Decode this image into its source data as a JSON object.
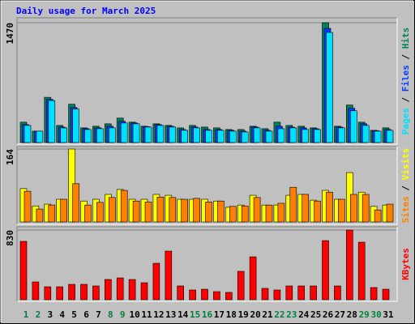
{
  "chart_data": [
    {
      "type": "bar",
      "title": "Daily usage for March 2025",
      "ylim": [
        0,
        1470
      ],
      "yticks": [
        1470
      ],
      "legend_separator": " / ",
      "series": [
        {
          "name": "Hits",
          "color": "#00805c",
          "values": [
            250,
            140,
            555,
            210,
            470,
            180,
            200,
            230,
            300,
            250,
            200,
            230,
            210,
            180,
            210,
            190,
            180,
            160,
            160,
            200,
            170,
            250,
            210,
            200,
            180,
            1470,
            200,
            460,
            250,
            150,
            180
          ]
        },
        {
          "name": "Files",
          "color": "#0040ff",
          "values": [
            220,
            140,
            530,
            190,
            430,
            170,
            180,
            200,
            260,
            240,
            195,
            220,
            200,
            160,
            190,
            160,
            160,
            150,
            140,
            190,
            150,
            200,
            190,
            180,
            170,
            1400,
            190,
            420,
            230,
            145,
            160
          ]
        },
        {
          "name": "Pages",
          "color": "#00e0ff",
          "values": [
            210,
            140,
            515,
            180,
            410,
            160,
            170,
            180,
            240,
            230,
            190,
            210,
            190,
            150,
            180,
            150,
            150,
            140,
            130,
            180,
            140,
            170,
            180,
            160,
            160,
            1350,
            180,
            390,
            210,
            140,
            150
          ]
        }
      ]
    },
    {
      "type": "bar",
      "ylim": [
        0,
        164
      ],
      "yticks": [
        164
      ],
      "legend_separator": " / ",
      "series": [
        {
          "name": "Visits",
          "color": "#ffff00",
          "values": [
            75,
            36,
            40,
            51,
            164,
            47,
            51,
            62,
            73,
            51,
            51,
            62,
            60,
            51,
            51,
            51,
            47,
            33,
            38,
            60,
            38,
            38,
            60,
            62,
            49,
            71,
            51,
            111,
            67,
            35,
            38
          ]
        },
        {
          "name": "Sites",
          "color": "#ff8000",
          "values": [
            69,
            29,
            38,
            51,
            86,
            38,
            44,
            55,
            71,
            47,
            45,
            56,
            55,
            51,
            53,
            45,
            47,
            35,
            36,
            55,
            38,
            42,
            78,
            62,
            47,
            67,
            51,
            62,
            62,
            27,
            40
          ]
        }
      ]
    },
    {
      "type": "bar",
      "ylim": [
        0,
        830
      ],
      "yticks": [
        830
      ],
      "legend_separator": " / ",
      "categories": [
        "1",
        "2",
        "3",
        "4",
        "5",
        "6",
        "7",
        "8",
        "9",
        "10",
        "11",
        "12",
        "13",
        "14",
        "15",
        "16",
        "17",
        "18",
        "19",
        "20",
        "21",
        "22",
        "23",
        "24",
        "25",
        "26",
        "27",
        "28",
        "29",
        "30",
        "31"
      ],
      "category_colors": [
        "#008040",
        "#008040",
        "#000000",
        "#000000",
        "#000000",
        "#000000",
        "#000000",
        "#008040",
        "#008040",
        "#000000",
        "#000000",
        "#000000",
        "#000000",
        "#000000",
        "#008040",
        "#008040",
        "#000000",
        "#000000",
        "#000000",
        "#000000",
        "#000000",
        "#008040",
        "#008040",
        "#000000",
        "#000000",
        "#000000",
        "#000000",
        "#000000",
        "#008040",
        "#008040",
        "#000000"
      ],
      "series": [
        {
          "name": "KBytes",
          "color": "#ff0000",
          "values": [
            695,
            212,
            154,
            154,
            183,
            183,
            164,
            241,
            260,
            241,
            202,
            434,
            579,
            164,
            116,
            125,
            96,
            87,
            338,
            511,
            135,
            116,
            164,
            164,
            164,
            704,
            164,
            830,
            685,
            145,
            125
          ]
        }
      ]
    }
  ]
}
